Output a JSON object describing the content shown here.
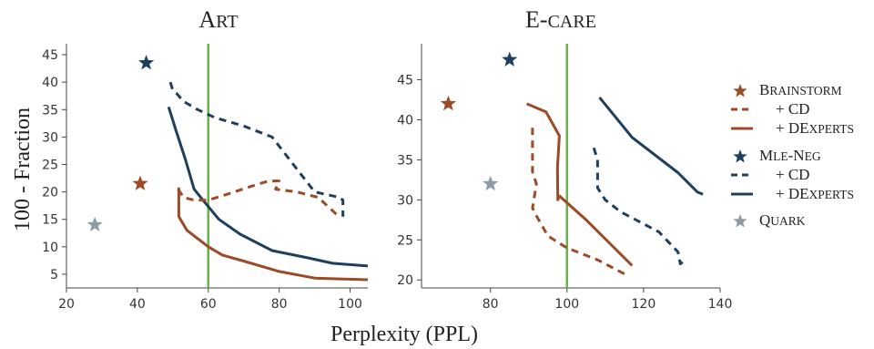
{
  "colors": {
    "brainstorm": "#9c4a27",
    "mle_neg": "#1f3f5e",
    "quark": "#8e9aa6",
    "threshold": "#6ab04c",
    "axes": "#444444"
  },
  "chart_data": [
    {
      "type": "line",
      "title": "ART",
      "xlabel": "Perplexity (PPL)",
      "ylabel": "100 - Fraction",
      "xlim": [
        20,
        105
      ],
      "ylim": [
        2.5,
        47
      ],
      "xticks": [
        20,
        40,
        60,
        80,
        100
      ],
      "yticks": [
        5,
        10,
        15,
        20,
        25,
        30,
        35,
        40,
        45
      ],
      "vline_x": 60,
      "markers": [
        {
          "name": "MLE-NEG",
          "x": 42.5,
          "y": 43.5
        },
        {
          "name": "BRAINSTORM",
          "x": 40.8,
          "y": 21.5
        },
        {
          "name": "QUARK",
          "x": 28,
          "y": 14
        }
      ],
      "series": [
        {
          "name": "MLE-NEG + CD",
          "style": "dashed",
          "x": [
            49.3,
            50.0,
            51.0,
            53.0,
            57.0,
            62.0,
            70.0,
            78.0,
            84.0,
            90.0,
            97.0,
            98.0,
            98.0
          ],
          "y": [
            40.0,
            38.5,
            38.0,
            36.5,
            35.0,
            33.5,
            32.0,
            30.0,
            25.0,
            20.0,
            19.0,
            18.5,
            15.5
          ]
        },
        {
          "name": "MLE-NEG + DEXPERTS",
          "style": "solid",
          "x": [
            48.8,
            51.0,
            53.5,
            56.0,
            58.5,
            63.0,
            69.0,
            78.0,
            88.0,
            95.0,
            105.0
          ],
          "y": [
            35.5,
            31.0,
            26.0,
            20.5,
            18.5,
            15.0,
            12.3,
            9.3,
            8.0,
            7.0,
            6.5
          ]
        },
        {
          "name": "BRAINSTORM + CD",
          "style": "dashed",
          "x": [
            51.5,
            53.0,
            56.0,
            60.0,
            65.0,
            72.0,
            77.0,
            80.0,
            79.0,
            85.0,
            91.0,
            96.0,
            97.0
          ],
          "y": [
            20.5,
            19.0,
            18.5,
            18.5,
            19.5,
            21.0,
            22.0,
            22.0,
            20.5,
            20.0,
            19.0,
            16.0,
            15.5
          ]
        },
        {
          "name": "BRAINSTORM + DEXPERTS",
          "style": "solid",
          "x": [
            51.7,
            51.7,
            54.0,
            58.0,
            60.0,
            64.0,
            70.0,
            80.0,
            90.0,
            100.0,
            105.0
          ],
          "y": [
            20.8,
            15.5,
            13.0,
            11.0,
            10.0,
            8.5,
            7.4,
            5.5,
            4.3,
            4.1,
            4.0
          ]
        }
      ]
    },
    {
      "type": "line",
      "title": "E-CARE",
      "xlabel": "Perplexity (PPL)",
      "ylabel": "",
      "xlim": [
        62,
        140
      ],
      "ylim": [
        19,
        49.5
      ],
      "xticks": [
        80,
        100,
        120,
        140
      ],
      "yticks": [
        20,
        25,
        30,
        35,
        40,
        45
      ],
      "vline_x": 100,
      "markers": [
        {
          "name": "MLE-NEG",
          "x": 85,
          "y": 47.5
        },
        {
          "name": "BRAINSTORM",
          "x": 69,
          "y": 42
        },
        {
          "name": "QUARK",
          "x": 80,
          "y": 32
        }
      ],
      "series": [
        {
          "name": "BRAINSTORM + DEXPERTS",
          "style": "solid",
          "x": [
            89.5,
            94.5,
            98.0,
            97.5,
            97.6,
            98.0,
            105.0,
            117.0
          ],
          "y": [
            42.0,
            41.0,
            38.0,
            34.0,
            30.0,
            30.5,
            27.5,
            21.8
          ]
        },
        {
          "name": "BRAINSTORM + CD",
          "style": "dashed",
          "x": [
            91.0,
            91.0,
            92.0,
            91.0,
            92.0,
            95.0,
            100.0,
            108.0,
            116.0
          ],
          "y": [
            39.0,
            33.5,
            32.0,
            29.0,
            28.0,
            25.5,
            24.0,
            22.5,
            20.5
          ]
        },
        {
          "name": "MLE-NEG + DEXPERTS",
          "style": "solid",
          "x": [
            108.5,
            117.0,
            129.0,
            134.0,
            135.5
          ],
          "y": [
            42.8,
            37.8,
            33.4,
            31.0,
            30.7
          ]
        },
        {
          "name": "MLE-NEG + CD",
          "style": "dashed",
          "x": [
            107.0,
            108.0,
            108.0,
            110.0,
            114.0,
            120.0,
            124.0,
            127.0,
            129.0,
            129.6,
            131.0
          ],
          "y": [
            36.5,
            35.0,
            31.5,
            30.0,
            28.5,
            27.0,
            26.0,
            24.5,
            23.5,
            22.0,
            22.5
          ]
        }
      ]
    }
  ],
  "legend": {
    "items": [
      {
        "kind": "star",
        "color_key": "brainstorm",
        "parts": [
          {
            "t": "B",
            "sc": false
          },
          {
            "t": "RAINSTORM",
            "sc": true
          }
        ]
      },
      {
        "kind": "dashed",
        "color_key": "brainstorm",
        "parts": [
          {
            "t": "+ CD",
            "sc": false
          }
        ]
      },
      {
        "kind": "solid",
        "color_key": "brainstorm",
        "parts": [
          {
            "t": "+ DE",
            "sc": false
          },
          {
            "t": "XPERTS",
            "sc": true
          }
        ]
      },
      {
        "kind": "star",
        "color_key": "mle_neg",
        "parts": [
          {
            "t": "M",
            "sc": false
          },
          {
            "t": "LE",
            "sc": true
          },
          {
            "t": "-N",
            "sc": false
          },
          {
            "t": "EG",
            "sc": true
          }
        ]
      },
      {
        "kind": "dashed",
        "color_key": "mle_neg",
        "parts": [
          {
            "t": "+ CD",
            "sc": false
          }
        ]
      },
      {
        "kind": "solid",
        "color_key": "mle_neg",
        "parts": [
          {
            "t": "+ DE",
            "sc": false
          },
          {
            "t": "XPERTS",
            "sc": true
          }
        ]
      },
      {
        "kind": "star",
        "color_key": "quark",
        "parts": [
          {
            "t": "Q",
            "sc": false
          },
          {
            "t": "UARK",
            "sc": true
          }
        ]
      }
    ]
  }
}
